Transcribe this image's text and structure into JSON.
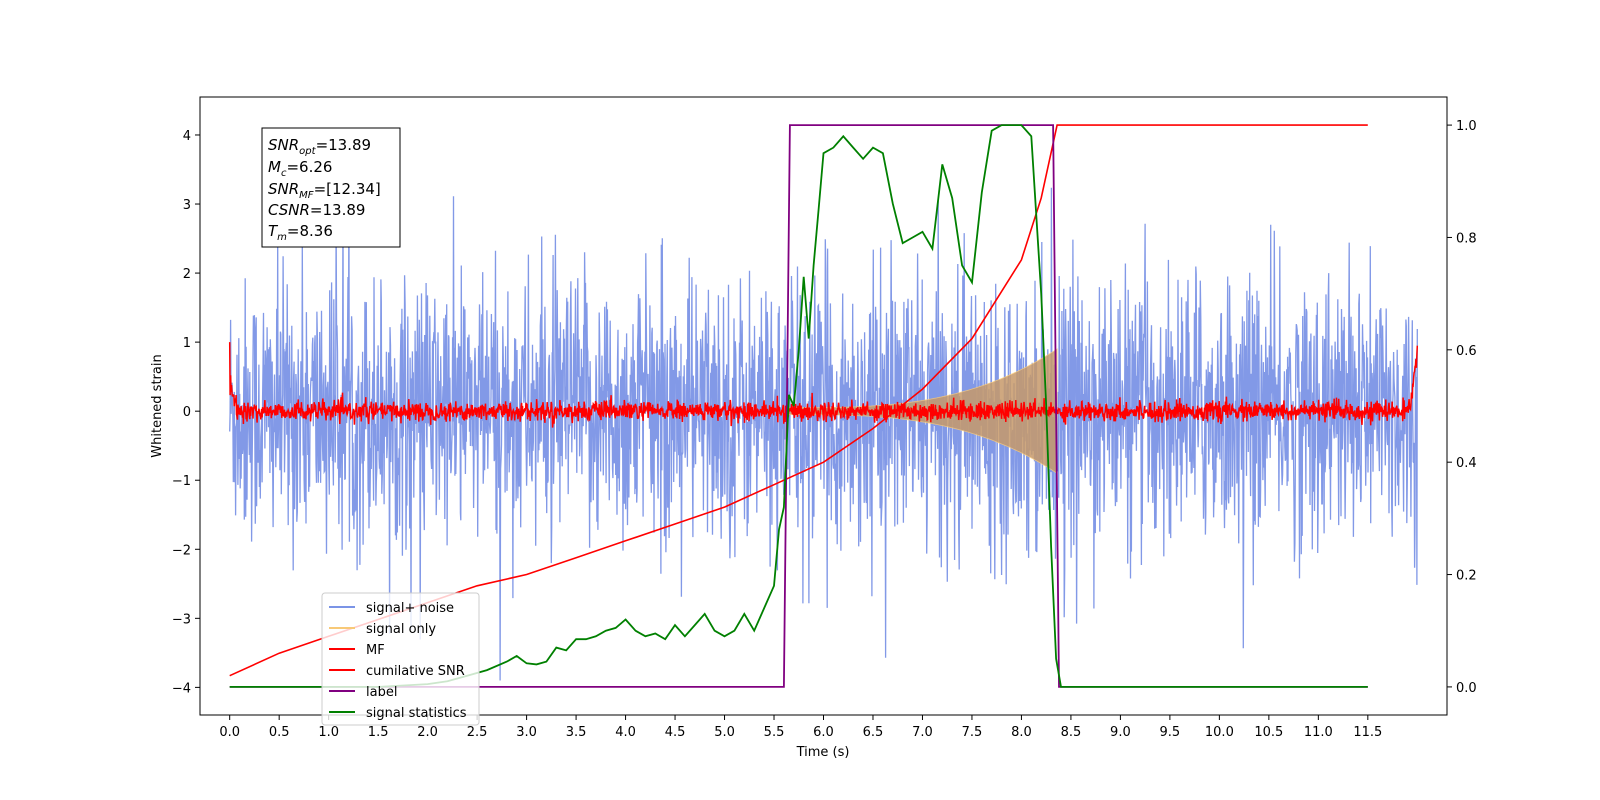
{
  "chart_data": {
    "type": "line",
    "xlabel": "Time (s)",
    "ylabel": "Whitened strain",
    "x_ticks": [
      "0.0",
      "0.5",
      "1.0",
      "1.5",
      "2.0",
      "2.5",
      "3.0",
      "3.5",
      "4.0",
      "4.5",
      "5.0",
      "5.5",
      "6.0",
      "6.5",
      "7.0",
      "7.5",
      "8.0",
      "8.5",
      "9.0",
      "9.5",
      "10.0",
      "10.5",
      "11.0",
      "11.5"
    ],
    "y_ticks_left": [
      "−4",
      "−3",
      "−2",
      "−1",
      "0",
      "1",
      "2",
      "3",
      "4"
    ],
    "y_ticks_right": [
      "0.0",
      "0.2",
      "0.4",
      "0.6",
      "0.8",
      "1.0"
    ],
    "xlim": [
      -0.3,
      12.3
    ],
    "ylim_left": [
      -4.4,
      4.55
    ],
    "ylim_right": [
      -0.05,
      1.05
    ],
    "time_range": [
      0.0,
      12.0
    ],
    "annotation": {
      "snr_opt": {
        "symbol": "SNR",
        "sub": "opt",
        "value": "=13.89"
      },
      "mc": {
        "symbol": "M",
        "sub": "c",
        "value": "=6.26"
      },
      "snr_mf": {
        "symbol": "SNR",
        "sub": "MF",
        "value": "=[12.34]"
      },
      "csnr": {
        "symbol": "CSNR",
        "sub": "",
        "value": "=13.89"
      },
      "tm": {
        "symbol": "T",
        "sub": "m",
        "value": "=8.36"
      }
    },
    "legend": [
      {
        "label": "signal+ noise",
        "color": "#7b94e6"
      },
      {
        "label": "signal only",
        "color": "#f8c977"
      },
      {
        "label": "MF",
        "color": "#ff0000"
      },
      {
        "label": "cumilative SNR",
        "color": "#ff0000"
      },
      {
        "label": "label",
        "color": "#800080"
      },
      {
        "label": "signal statistics",
        "color": "#008000"
      }
    ],
    "series": [
      {
        "name": "signal+ noise",
        "axis": "left",
        "description": "whitened strain noise, approx amplitude ±2.5 with spikes up to ±4.2",
        "amplitude": 1.0
      },
      {
        "name": "signal only",
        "axis": "left",
        "t_start": 5.65,
        "t_end": 8.36,
        "amp_start": 0.05,
        "amp_end": 0.9
      },
      {
        "name": "MF",
        "axis": "left",
        "baseline": 0.0,
        "noise": 0.07
      },
      {
        "name": "cumilative SNR",
        "axis": "right",
        "x": [
          0.0,
          0.5,
          1.0,
          1.5,
          2.0,
          2.5,
          3.0,
          3.5,
          4.0,
          4.5,
          5.0,
          5.5,
          6.0,
          6.5,
          7.0,
          7.5,
          8.0,
          8.2,
          8.36,
          9.0,
          10.0,
          11.0,
          11.5
        ],
        "y": [
          0.02,
          0.06,
          0.09,
          0.12,
          0.15,
          0.18,
          0.2,
          0.23,
          0.26,
          0.29,
          0.32,
          0.36,
          0.4,
          0.46,
          0.53,
          0.62,
          0.76,
          0.87,
          1.0,
          1.0,
          1.0,
          1.0,
          1.0
        ]
      },
      {
        "name": "label",
        "axis": "right",
        "x": [
          0.0,
          5.6,
          5.66,
          8.32,
          8.38,
          11.5
        ],
        "y": [
          0,
          0,
          1,
          1,
          0,
          0
        ]
      },
      {
        "name": "signal statistics",
        "axis": "right",
        "x": [
          0.0,
          0.5,
          1.0,
          1.5,
          2.0,
          2.2,
          2.4,
          2.6,
          2.8,
          2.9,
          3.0,
          3.1,
          3.2,
          3.3,
          3.4,
          3.5,
          3.6,
          3.7,
          3.8,
          3.9,
          4.0,
          4.1,
          4.2,
          4.3,
          4.4,
          4.5,
          4.6,
          4.7,
          4.8,
          4.9,
          5.0,
          5.1,
          5.2,
          5.3,
          5.4,
          5.5,
          5.55,
          5.6,
          5.65,
          5.7,
          5.75,
          5.8,
          5.85,
          5.9,
          5.95,
          6.0,
          6.1,
          6.2,
          6.3,
          6.4,
          6.5,
          6.6,
          6.7,
          6.8,
          6.9,
          7.0,
          7.1,
          7.2,
          7.3,
          7.4,
          7.5,
          7.6,
          7.7,
          7.8,
          7.9,
          8.0,
          8.1,
          8.2,
          8.25,
          8.3,
          8.35,
          8.4,
          8.5,
          9.0,
          10.0,
          11.0,
          11.5
        ],
        "y": [
          0.0,
          0.0,
          0.0,
          0.0,
          0.005,
          0.01,
          0.02,
          0.03,
          0.045,
          0.055,
          0.042,
          0.04,
          0.045,
          0.07,
          0.065,
          0.085,
          0.085,
          0.09,
          0.1,
          0.105,
          0.12,
          0.1,
          0.09,
          0.095,
          0.085,
          0.11,
          0.09,
          0.11,
          0.13,
          0.1,
          0.09,
          0.1,
          0.13,
          0.1,
          0.14,
          0.18,
          0.28,
          0.32,
          0.52,
          0.5,
          0.6,
          0.73,
          0.62,
          0.75,
          0.85,
          0.95,
          0.96,
          0.98,
          0.96,
          0.94,
          0.96,
          0.95,
          0.86,
          0.79,
          0.8,
          0.81,
          0.78,
          0.93,
          0.87,
          0.75,
          0.72,
          0.88,
          0.99,
          1.0,
          1.0,
          1.0,
          0.98,
          0.7,
          0.5,
          0.25,
          0.05,
          0.0,
          0.0,
          0.0,
          0.0,
          0.0,
          0.0
        ]
      }
    ],
    "grid": false,
    "legend_position": "lower-left"
  }
}
